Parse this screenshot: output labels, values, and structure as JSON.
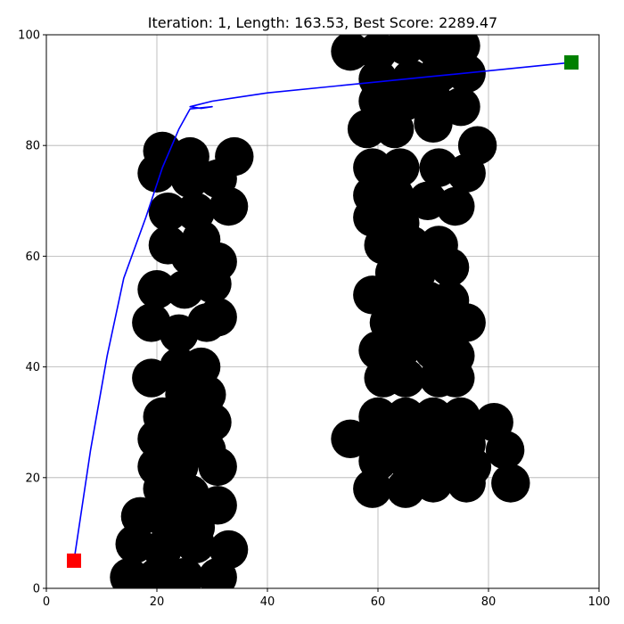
{
  "chart_data": {
    "type": "scatter",
    "title": "Iteration: 1, Length: 163.53, Best Score: 2289.47",
    "xlim": [
      0,
      100
    ],
    "ylim": [
      0,
      100
    ],
    "grid": true,
    "x_ticks": [
      0,
      20,
      40,
      60,
      80,
      100
    ],
    "y_ticks": [
      0,
      20,
      40,
      60,
      80,
      100
    ],
    "x_tick_labels": [
      "0",
      "20",
      "40",
      "60",
      "80",
      "100"
    ],
    "y_tick_labels": [
      "0",
      "20",
      "40",
      "60",
      "80",
      "100"
    ],
    "obstacle_radius": 3.5,
    "obstacle_color": "#000000",
    "path_color": "#0000ff",
    "start_color": "#ff0000",
    "goal_color": "#008000",
    "start": {
      "x": 5,
      "y": 5
    },
    "goal": {
      "x": 95,
      "y": 95
    },
    "obstacles": [
      [
        21,
        79
      ],
      [
        26,
        78
      ],
      [
        34,
        78
      ],
      [
        20,
        75
      ],
      [
        26,
        74
      ],
      [
        31,
        74
      ],
      [
        22,
        68
      ],
      [
        27,
        68
      ],
      [
        33,
        69
      ],
      [
        22,
        62
      ],
      [
        28,
        63
      ],
      [
        26,
        60
      ],
      [
        31,
        59
      ],
      [
        20,
        54
      ],
      [
        25,
        54
      ],
      [
        30,
        55
      ],
      [
        19,
        48
      ],
      [
        24,
        46
      ],
      [
        29,
        48
      ],
      [
        31,
        49
      ],
      [
        19,
        38
      ],
      [
        24,
        40
      ],
      [
        28,
        40
      ],
      [
        25,
        35
      ],
      [
        29,
        35
      ],
      [
        21,
        31
      ],
      [
        26,
        30
      ],
      [
        30,
        30
      ],
      [
        20,
        27
      ],
      [
        25,
        26
      ],
      [
        29,
        25
      ],
      [
        20,
        22
      ],
      [
        24,
        22
      ],
      [
        31,
        22
      ],
      [
        21,
        18
      ],
      [
        26,
        17
      ],
      [
        31,
        15
      ],
      [
        17,
        13
      ],
      [
        22,
        12
      ],
      [
        27,
        11
      ],
      [
        16,
        8
      ],
      [
        21,
        7
      ],
      [
        27,
        8
      ],
      [
        33,
        7
      ],
      [
        15,
        2
      ],
      [
        20,
        2
      ],
      [
        25,
        2
      ],
      [
        31,
        2
      ],
      [
        55,
        97
      ],
      [
        60,
        97
      ],
      [
        65,
        98
      ],
      [
        70,
        98
      ],
      [
        75,
        98
      ],
      [
        60,
        92
      ],
      [
        66,
        92
      ],
      [
        71,
        93
      ],
      [
        76,
        93
      ],
      [
        60,
        88
      ],
      [
        65,
        88
      ],
      [
        70,
        88
      ],
      [
        75,
        87
      ],
      [
        58,
        83
      ],
      [
        63,
        83
      ],
      [
        70,
        84
      ],
      [
        59,
        76
      ],
      [
        64,
        76
      ],
      [
        71,
        76
      ],
      [
        76,
        75
      ],
      [
        78,
        80
      ],
      [
        59,
        71
      ],
      [
        63,
        71
      ],
      [
        69,
        70
      ],
      [
        74,
        69
      ],
      [
        59,
        67
      ],
      [
        64,
        66
      ],
      [
        61,
        62
      ],
      [
        66,
        62
      ],
      [
        71,
        62
      ],
      [
        63,
        57
      ],
      [
        67,
        57
      ],
      [
        73,
        58
      ],
      [
        59,
        53
      ],
      [
        64,
        52
      ],
      [
        69,
        52
      ],
      [
        73,
        52
      ],
      [
        62,
        48
      ],
      [
        68,
        47
      ],
      [
        72,
        48
      ],
      [
        76,
        48
      ],
      [
        60,
        43
      ],
      [
        64,
        43
      ],
      [
        70,
        43
      ],
      [
        74,
        42
      ],
      [
        61,
        38
      ],
      [
        65,
        38
      ],
      [
        71,
        38
      ],
      [
        74,
        38
      ],
      [
        60,
        31
      ],
      [
        65,
        31
      ],
      [
        70,
        31
      ],
      [
        75,
        31
      ],
      [
        81,
        30
      ],
      [
        55,
        27
      ],
      [
        60,
        27
      ],
      [
        66,
        26
      ],
      [
        71,
        26
      ],
      [
        76,
        26
      ],
      [
        83,
        25
      ],
      [
        60,
        23
      ],
      [
        66,
        22
      ],
      [
        72,
        22
      ],
      [
        77,
        22
      ],
      [
        59,
        18
      ],
      [
        65,
        18
      ],
      [
        70,
        19
      ],
      [
        76,
        19
      ],
      [
        84,
        19
      ]
    ],
    "path": [
      [
        5,
        5
      ],
      [
        8,
        25
      ],
      [
        11,
        42
      ],
      [
        14,
        56
      ],
      [
        18,
        67
      ],
      [
        21,
        76
      ],
      [
        24,
        83
      ],
      [
        26,
        86.6
      ],
      [
        30,
        87
      ],
      [
        28,
        86.7
      ],
      [
        26,
        87
      ],
      [
        30,
        88
      ],
      [
        40,
        89.5
      ],
      [
        50,
        90.5
      ],
      [
        60,
        91.5
      ],
      [
        70,
        92.5
      ],
      [
        80,
        93.5
      ],
      [
        90,
        94.5
      ],
      [
        95,
        95
      ]
    ]
  }
}
